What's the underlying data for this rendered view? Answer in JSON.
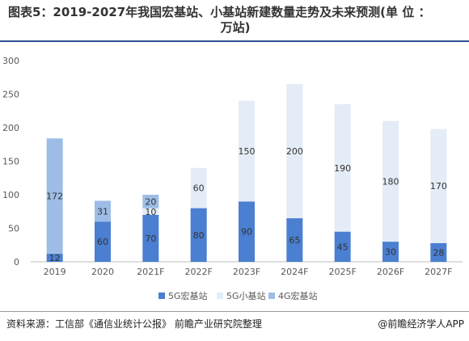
{
  "title_line1": "图表5：2019-2027年我国宏基站、小基站新建数量走势及未来预测(单 位 ：",
  "title_line2": "万站)",
  "source": "资料来源：工信部《通信业统计公报》 前瞻产业研究院整理",
  "credit": "@前瞻经济学人APP",
  "colors": {
    "macro_5g": "#4a7fd1",
    "small_5g": "#e4ecf7",
    "macro_4g": "#9dbde6"
  },
  "chart_data": {
    "type": "bar",
    "stacked": true,
    "categories": [
      "2019",
      "2020",
      "2021F",
      "2022F",
      "2023F",
      "2024F",
      "2025F",
      "2026F",
      "2027F"
    ],
    "ylim": [
      0,
      300
    ],
    "yticks": [
      0,
      50,
      100,
      150,
      200,
      250,
      300
    ],
    "grid": false,
    "legend_position": "bottom",
    "series": [
      {
        "name": "5G宏基站",
        "values": [
          12,
          60,
          70,
          80,
          90,
          65,
          45,
          30,
          28
        ]
      },
      {
        "name": "5G小基站",
        "values": [
          0,
          0,
          10,
          60,
          150,
          200,
          190,
          180,
          170
        ]
      },
      {
        "name": "4G宏基站",
        "values": [
          172,
          31,
          20,
          0,
          0,
          0,
          0,
          0,
          0
        ]
      }
    ]
  }
}
